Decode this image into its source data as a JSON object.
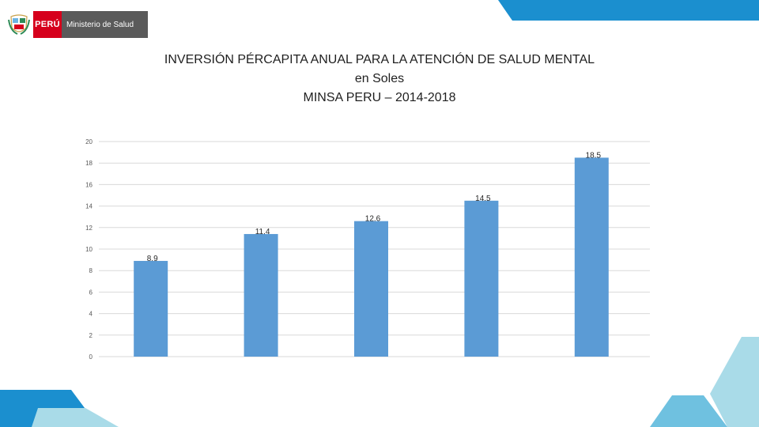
{
  "header": {
    "country": "PERÚ",
    "ministry": "Ministerio de Salud"
  },
  "title_lines": [
    "INVERSIÓN PÉRCAPITA ANUAL  PARA LA ATENCIÓN DE SALUD MENTAL",
    "en Soles",
    "MINSA PERU – 2014-2018"
  ],
  "colors": {
    "bar": "#5b9bd5",
    "grid": "#d9d9d9",
    "brand_red": "#d6001c",
    "accent_blue": "#1b8fcf",
    "accent_light": "#a9dbe8"
  },
  "chart_data": {
    "type": "bar",
    "title": "INVERSIÓN PÉRCAPITA ANUAL  PARA LA ATENCIÓN DE SALUD MENTAL en Soles MINSA PERU – 2014-2018",
    "categories": [
      "",
      "",
      "",
      "",
      ""
    ],
    "values": [
      8.9,
      11.4,
      12.6,
      14.5,
      18.5
    ],
    "data_labels": [
      "8.9",
      "11.4",
      "12.6",
      "14.5",
      "18.5"
    ],
    "ylim": [
      0,
      20
    ],
    "yticks": [
      0,
      2,
      4,
      6,
      8,
      10,
      12,
      14,
      16,
      18,
      20
    ],
    "grid": true,
    "xlabel": "",
    "ylabel": ""
  }
}
